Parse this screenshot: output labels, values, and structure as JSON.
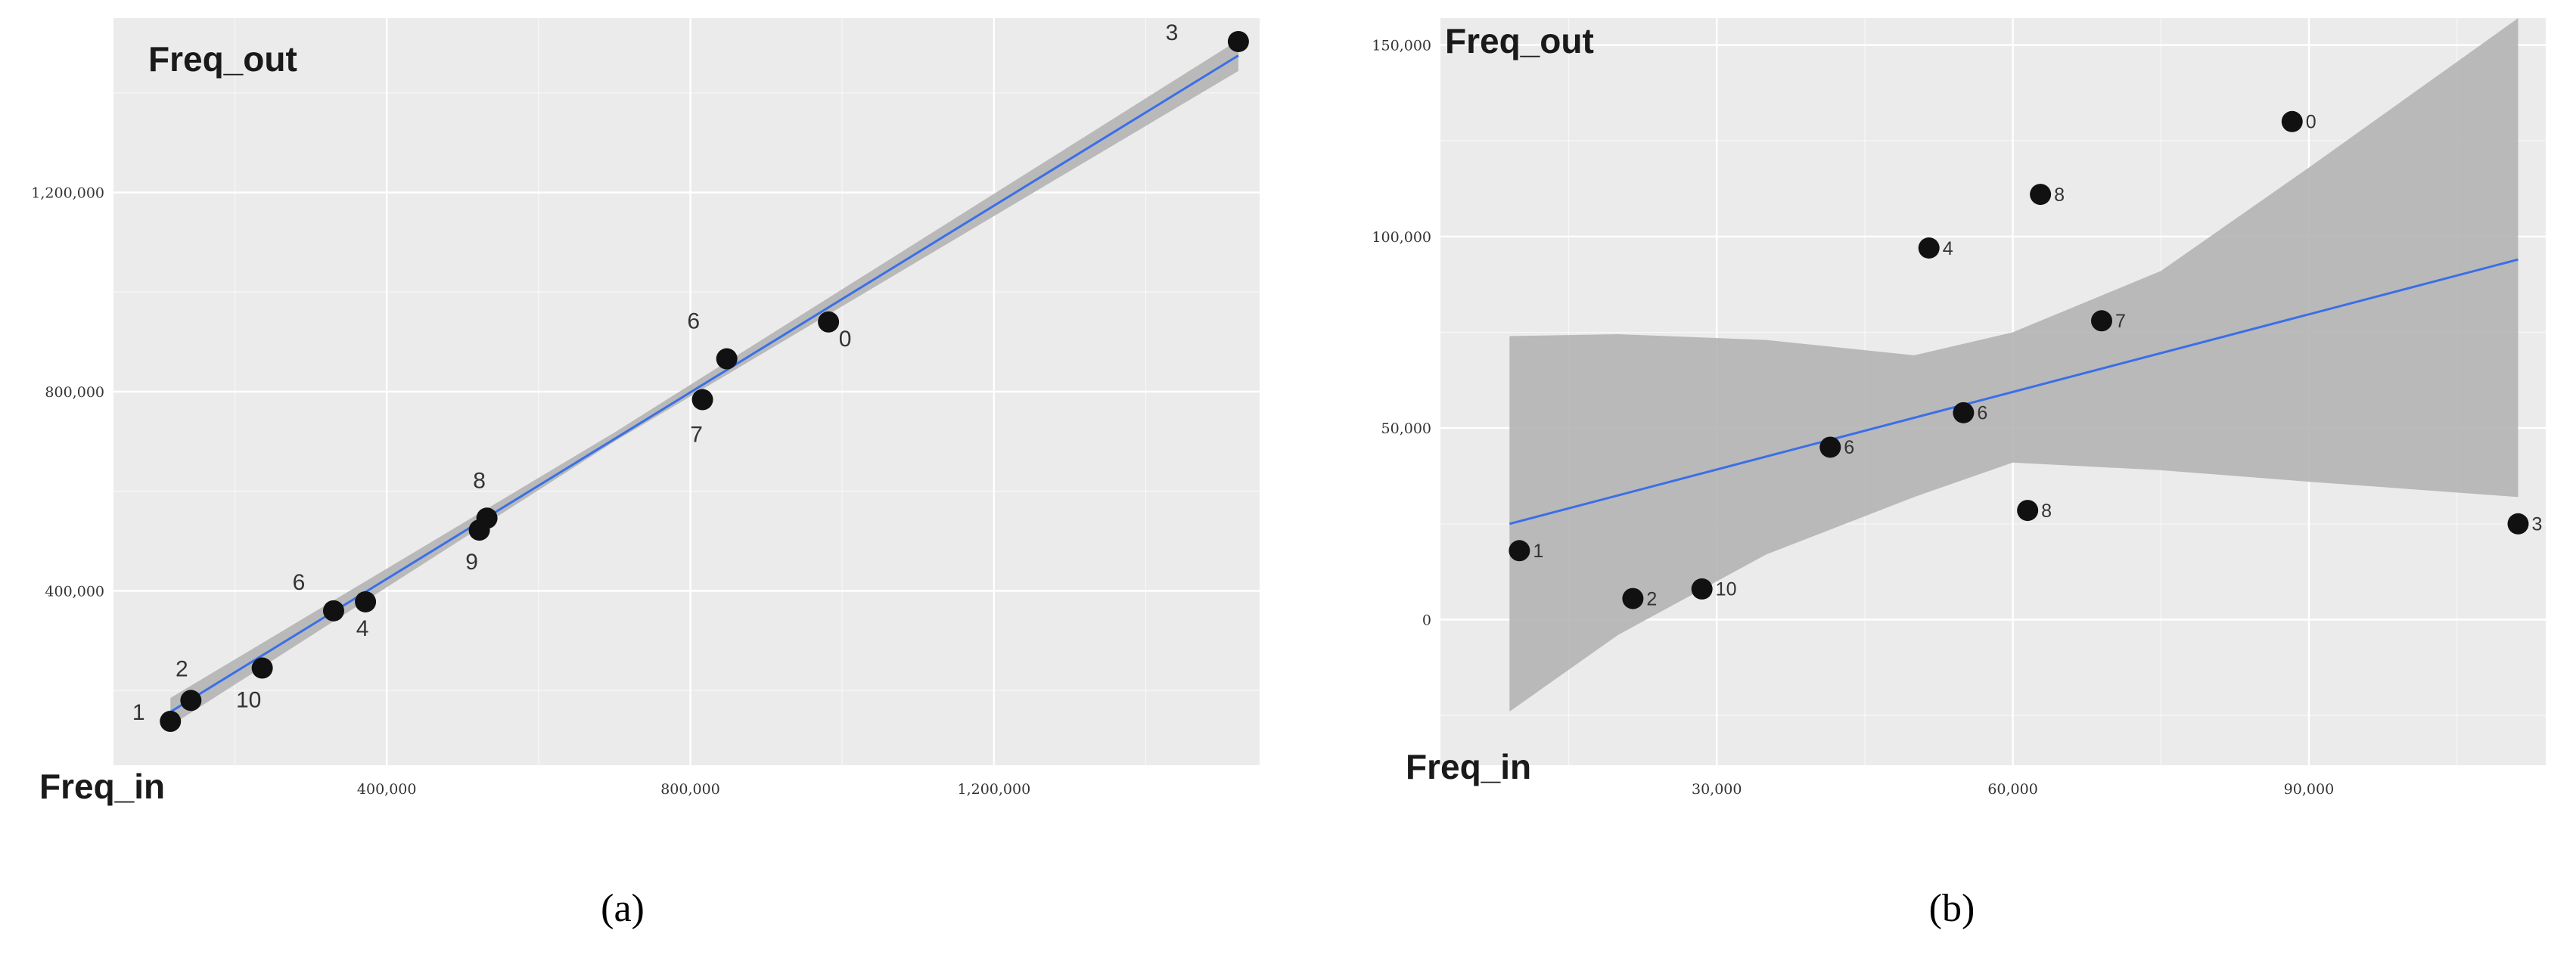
{
  "captions": [
    "(a)",
    "(b)"
  ],
  "colors": {
    "panel_background": "#ebebeb",
    "grid": "#ffffff",
    "fit_line": "#3b6fe6",
    "confidence_band": "#b4b4b4",
    "points": "#111111"
  },
  "chart_data": [
    {
      "type": "scatter",
      "caption": "(a)",
      "xlabel": "Freq_in",
      "ylabel": "Freq_out",
      "grid": true,
      "xlim": [
        40000,
        1550000
      ],
      "ylim": [
        50000,
        1550000
      ],
      "x_ticks": [
        400000,
        800000,
        1200000
      ],
      "x_tick_labels": [
        "400,000",
        "800,000",
        "1,200,000"
      ],
      "y_ticks": [
        400000,
        800000,
        1200000
      ],
      "y_tick_labels": [
        "400,000",
        "800,000",
        "1,200,000"
      ],
      "points": [
        {
          "label": "0",
          "x": 982000,
          "y": 940000
        },
        {
          "label": "1",
          "x": 115000,
          "y": 138000
        },
        {
          "label": "2",
          "x": 142000,
          "y": 180000
        },
        {
          "label": "3",
          "x": 1522000,
          "y": 1503000
        },
        {
          "label": "4",
          "x": 372000,
          "y": 378000
        },
        {
          "label": "6",
          "x": 330000,
          "y": 360000
        },
        {
          "label": "6",
          "x": 848000,
          "y": 866000
        },
        {
          "label": "7",
          "x": 816000,
          "y": 784000
        },
        {
          "label": "8",
          "x": 532000,
          "y": 546000
        },
        {
          "label": "9",
          "x": 522000,
          "y": 522000
        },
        {
          "label": "10",
          "x": 236000,
          "y": 245000
        }
      ],
      "fit_line": {
        "x": [
          115000,
          1522000
        ],
        "y": [
          157000,
          1475000
        ]
      },
      "confidence_band": {
        "x": [
          115000,
          700000,
          1522000
        ],
        "upper": [
          185000,
          718000,
          1506000
        ],
        "lower": [
          129000,
          700000,
          1444000
        ]
      }
    },
    {
      "type": "scatter",
      "caption": "(b)",
      "xlabel": "Freq_in",
      "ylabel": "Freq_out",
      "grid": true,
      "xlim": [
        2000,
        114000
      ],
      "ylim": [
        -38000,
        157000
      ],
      "x_ticks": [
        30000,
        60000,
        90000
      ],
      "x_tick_labels": [
        "30,000",
        "60,000",
        "90,000"
      ],
      "y_ticks": [
        0,
        50000,
        100000,
        150000
      ],
      "y_tick_labels": [
        "0",
        "50,000",
        "100,000",
        "150,000"
      ],
      "points": [
        {
          "label": "0",
          "x": 88300,
          "y": 130000
        },
        {
          "label": "1",
          "x": 10000,
          "y": 18000
        },
        {
          "label": "2",
          "x": 21500,
          "y": 5500
        },
        {
          "label": "3",
          "x": 111200,
          "y": 25000
        },
        {
          "label": "4",
          "x": 51500,
          "y": 97000
        },
        {
          "label": "6",
          "x": 41500,
          "y": 45000
        },
        {
          "label": "6",
          "x": 55000,
          "y": 54000
        },
        {
          "label": "7",
          "x": 69000,
          "y": 78000
        },
        {
          "label": "8",
          "x": 62800,
          "y": 111000
        },
        {
          "label": "8",
          "x": 61500,
          "y": 28500
        },
        {
          "label": "10",
          "x": 28500,
          "y": 8000
        }
      ],
      "fit_line": {
        "x": [
          9000,
          111200
        ],
        "y": [
          25000,
          94000
        ]
      },
      "confidence_band": {
        "x": [
          9000,
          20000,
          35000,
          50000,
          60000,
          75000,
          90000,
          111200
        ],
        "upper": [
          74000,
          74500,
          73000,
          69000,
          75000,
          91000,
          118000,
          157000
        ],
        "lower": [
          -24000,
          -4000,
          17000,
          32000,
          41000,
          39000,
          36000,
          32000
        ]
      }
    }
  ]
}
